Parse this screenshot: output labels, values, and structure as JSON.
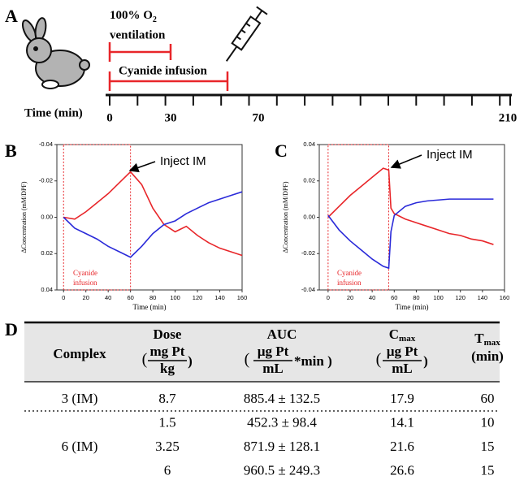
{
  "panel_labels": [
    "A",
    "B",
    "C",
    "D"
  ],
  "timeline": {
    "o2_label": {
      "main": "100% O",
      "sub": "2",
      "line2": "ventilation"
    },
    "infusion_label": "Cyanide infusion",
    "axis_label": "Time (min)",
    "tick_labels": [
      "0",
      "30",
      "70",
      "210"
    ]
  },
  "chart_data": [
    {
      "type": "line",
      "xlabel": "Time (min)",
      "ylabel": "ΔConcentration (mM/DPF)",
      "annotation": "Inject IM",
      "infusion_text": [
        "Cyanide",
        "infusion"
      ],
      "infusion_box": [
        0,
        60
      ],
      "x": [
        0,
        10,
        20,
        30,
        40,
        50,
        60,
        70,
        80,
        90,
        100,
        110,
        120,
        130,
        140,
        150,
        160
      ],
      "series": [
        {
          "color": "#e8262a",
          "values": [
            0,
            0.001,
            -0.003,
            -0.008,
            -0.013,
            -0.019,
            -0.025,
            -0.018,
            -0.005,
            0.004,
            0.008,
            0.005,
            0.01,
            0.014,
            0.017,
            0.019,
            0.021
          ]
        },
        {
          "color": "#2b2bd9",
          "values": [
            0,
            0.006,
            0.009,
            0.012,
            0.016,
            0.019,
            0.022,
            0.016,
            0.009,
            0.004,
            0.002,
            -0.002,
            -0.005,
            -0.008,
            -0.01,
            -0.012,
            -0.014
          ]
        }
      ],
      "xlim": [
        -6,
        160
      ],
      "xticks": [
        0,
        20,
        40,
        60,
        80,
        100,
        120,
        140,
        160
      ],
      "ylim": [
        0.04,
        -0.04
      ],
      "yticks": [
        -0.04,
        -0.02,
        {
          "value": 0,
          "label": "0.00"
        },
        0.02,
        0.04
      ]
    },
    {
      "type": "line",
      "xlabel": "Time (min)",
      "ylabel": "ΔConcentration (mM/DPF)",
      "annotation": "Inject IM",
      "infusion_text": [
        "Cyanide",
        "infusion"
      ],
      "infusion_box": [
        0,
        55
      ],
      "x": [
        0,
        10,
        20,
        30,
        40,
        50,
        55,
        57,
        60,
        70,
        80,
        90,
        100,
        110,
        120,
        130,
        140,
        150
      ],
      "series": [
        {
          "color": "#e8262a",
          "values": [
            0,
            0.006,
            0.012,
            0.017,
            0.022,
            0.027,
            0.026,
            0.005,
            0.002,
            -0.001,
            -0.003,
            -0.005,
            -0.007,
            -0.009,
            -0.01,
            -0.012,
            -0.013,
            -0.015
          ]
        },
        {
          "color": "#2b2bd9",
          "values": [
            0.001,
            -0.007,
            -0.013,
            -0.018,
            -0.023,
            -0.027,
            -0.028,
            -0.008,
            0.001,
            0.006,
            0.008,
            0.009,
            0.0095,
            0.01,
            0.01,
            0.01,
            0.01,
            0.01
          ]
        }
      ],
      "xlim": [
        -8,
        160
      ],
      "xticks": [
        0,
        20,
        40,
        60,
        80,
        100,
        120,
        140,
        160
      ],
      "ylim": [
        -0.04,
        0.04
      ],
      "yticks": [
        -0.04,
        -0.02,
        {
          "value": 0,
          "label": "0.00"
        },
        0.02,
        0.04
      ]
    }
  ],
  "table": {
    "header": {
      "complex": "Complex",
      "dose": {
        "title": "Dose",
        "open": "(",
        "num": "mg Pt",
        "den": "kg",
        "close": ")"
      },
      "auc": {
        "title": "AUC",
        "open": "(",
        "num": "µg Pt",
        "den": "mL",
        "close": "*min )"
      },
      "cmax": {
        "title": "C",
        "sub": "max",
        "open": "(",
        "num": "µg Pt",
        "den": "mL",
        "close": ")"
      },
      "tmax": {
        "title": "T",
        "sub": "max",
        "unit": "(min)"
      }
    },
    "groups": [
      {
        "complex": "3 (IM)",
        "rows": [
          [
            "8.7",
            "885.4 ± 132.5",
            "17.9",
            "60"
          ]
        ]
      },
      {
        "complex": "6 (IM)",
        "rows": [
          [
            "1.5",
            "452.3 ± 98.4",
            "14.1",
            "10"
          ],
          [
            "3.25",
            "871.9 ± 128.1",
            "21.6",
            "15"
          ],
          [
            "6",
            "960.5 ± 249.3",
            "26.6",
            "15"
          ]
        ]
      }
    ]
  }
}
